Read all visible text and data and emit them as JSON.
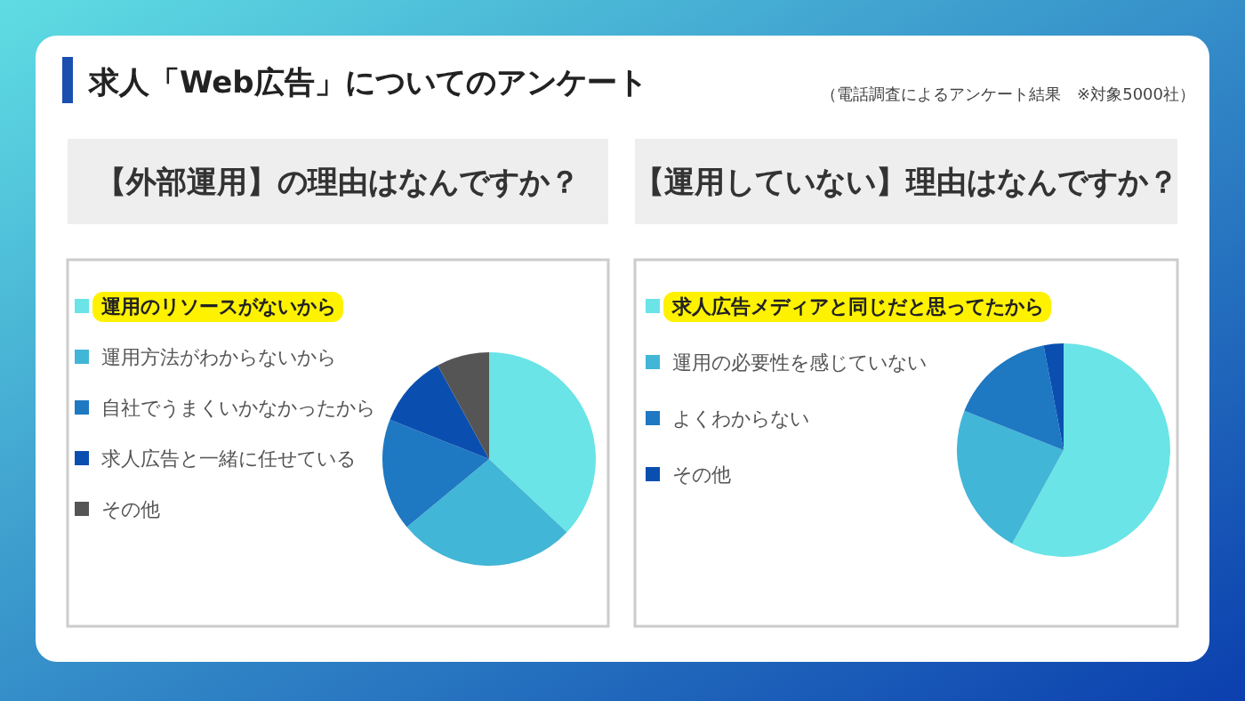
{
  "chart_data": [
    {
      "type": "pie",
      "title": "【外部運用】の理由はなんですか？",
      "annotations": [
        "求人「Web広告」についてのアンケート",
        "（電話調査によるアンケート結果　※対象5000社）"
      ],
      "legend": "left",
      "categories": [
        "運用のリソースがないから",
        "運用方法がわからないから",
        "自社でうまくいかなかったから",
        "求人広告と一緒に任せている",
        "その他"
      ],
      "values": [
        37,
        27,
        17,
        11,
        8
      ],
      "colors": [
        "#6ae4e6",
        "#42b6d6",
        "#1e78c2",
        "#0a4fb0",
        "#555555"
      ]
    },
    {
      "type": "pie",
      "title": "【運用していない】理由はなんですか？",
      "legend": "left",
      "categories": [
        "求人広告メディアと同じだと思ってたから",
        "運用の必要性を感じていない",
        "よくわからない",
        "その他"
      ],
      "values": [
        58,
        23,
        16,
        3
      ],
      "colors": [
        "#6ae4e6",
        "#42b6d6",
        "#1e78c2",
        "#0a4fb0"
      ]
    }
  ]
}
